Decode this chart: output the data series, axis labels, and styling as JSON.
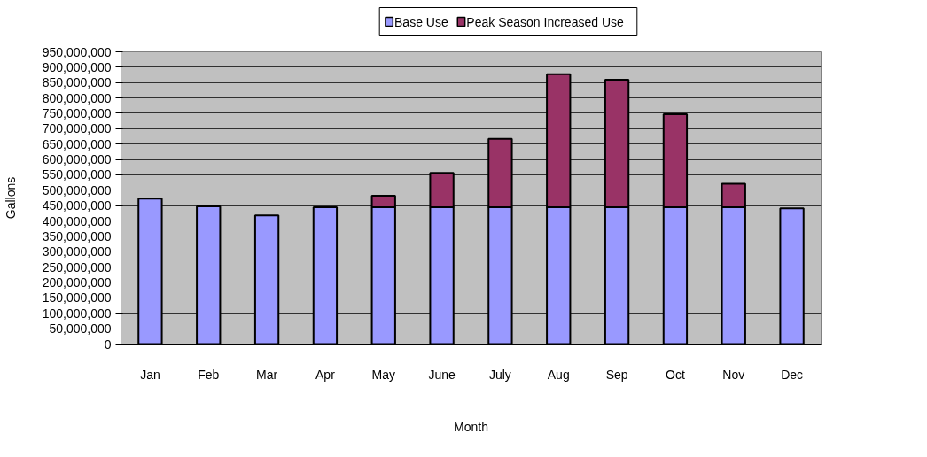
{
  "chart_data": {
    "type": "bar",
    "stacked": true,
    "xlabel": "Month",
    "ylabel": "Gallons",
    "categories": [
      "Jan",
      "Feb",
      "Mar",
      "Apr",
      "May",
      "June",
      "July",
      "Aug",
      "Sep",
      "Oct",
      "Nov",
      "Dec"
    ],
    "series": [
      {
        "name": "Base Use",
        "color": "#9999ff",
        "values": [
          473000000,
          448000000,
          418000000,
          445000000,
          445000000,
          445000000,
          445000000,
          445000000,
          445000000,
          445000000,
          445000000,
          441000000
        ]
      },
      {
        "name": "Peak Season Increased Use",
        "color": "#993366",
        "values": [
          null,
          null,
          null,
          null,
          37000000,
          111000000,
          222000000,
          432000000,
          414000000,
          302000000,
          76000000,
          null
        ]
      }
    ],
    "ylim": [
      0,
      950000000
    ],
    "yticks": [
      0,
      {
        "value": 50000000,
        "label": "50,000,000"
      },
      {
        "value": 100000000,
        "label": "100,000,000"
      },
      {
        "value": 150000000,
        "label": "150,000,000"
      },
      {
        "value": 200000000,
        "label": "200,000,000"
      },
      {
        "value": 250000000,
        "label": "250,000,000"
      },
      {
        "value": 300000000,
        "label": "300,000,000"
      },
      {
        "value": 350000000,
        "label": "350,000,000"
      },
      {
        "value": 400000000,
        "label": "400,000,000"
      },
      {
        "value": 450000000,
        "label": "450,000,000"
      },
      {
        "value": 500000000,
        "label": "500,000,000"
      },
      {
        "value": 550000000,
        "label": "550,000,000"
      },
      {
        "value": 600000000,
        "label": "600,000,000"
      },
      {
        "value": 650000000,
        "label": "650,000,000"
      },
      {
        "value": 700000000,
        "label": "700,000,000"
      },
      {
        "value": 750000000,
        "label": "750,000,000"
      },
      {
        "value": 800000000,
        "label": "800,000,000"
      },
      {
        "value": 850000000,
        "label": "850,000,000"
      },
      {
        "value": 900000000,
        "label": "900,000,000"
      },
      {
        "value": 950000000,
        "label": "950,000,000"
      }
    ],
    "grid": "y",
    "legend": "top"
  }
}
